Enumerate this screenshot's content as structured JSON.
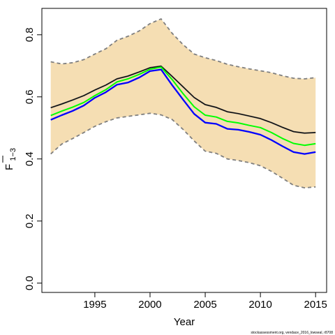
{
  "chart_data": {
    "type": "line",
    "xlabel": "Year",
    "ylabel": "F",
    "ylabel_subscript": "1−3",
    "xlim": [
      1990.2,
      2016
    ],
    "ylim": [
      -0.03,
      0.885
    ],
    "x_ticks": [
      1995,
      2000,
      2005,
      2010,
      2015
    ],
    "y_ticks": [
      0.0,
      0.2,
      0.4,
      0.6,
      0.8
    ],
    "y_tick_labels": [
      "0.0",
      "0.2",
      "0.4",
      "0.6",
      "0.8"
    ],
    "grid": false,
    "legend": "none",
    "years": [
      1991,
      1992,
      1993,
      1994,
      1995,
      1996,
      1997,
      1998,
      1999,
      2000,
      2001,
      2002,
      2003,
      2004,
      2005,
      2006,
      2007,
      2008,
      2009,
      2010,
      2011,
      2012,
      2013,
      2014,
      2015
    ],
    "band": {
      "color": "#f5deb3",
      "border_color": "#7f7f7f",
      "lower": [
        0.416,
        0.448,
        0.466,
        0.485,
        0.505,
        0.52,
        0.532,
        0.537,
        0.542,
        0.547,
        0.542,
        0.527,
        0.495,
        0.458,
        0.425,
        0.418,
        0.4,
        0.395,
        0.388,
        0.378,
        0.36,
        0.338,
        0.315,
        0.307,
        0.31
      ],
      "upper": [
        0.713,
        0.706,
        0.71,
        0.72,
        0.738,
        0.755,
        0.782,
        0.795,
        0.812,
        0.836,
        0.851,
        0.805,
        0.768,
        0.738,
        0.726,
        0.717,
        0.705,
        0.697,
        0.69,
        0.684,
        0.678,
        0.668,
        0.66,
        0.658,
        0.662
      ]
    },
    "series": [
      {
        "color": "#555555",
        "width": 2.0,
        "values": [
          0.565,
          0.577,
          0.59,
          0.604,
          0.622,
          0.638,
          0.658,
          0.667,
          0.68,
          0.694,
          0.699,
          0.666,
          0.632,
          0.598,
          0.575,
          0.566,
          0.552,
          0.546,
          0.538,
          0.53,
          0.517,
          0.502,
          0.488,
          0.483,
          0.485
        ]
      },
      {
        "color": "#00ff00",
        "width": 2.0,
        "values": [
          0.54,
          0.554,
          0.567,
          0.582,
          0.604,
          0.623,
          0.648,
          0.658,
          0.672,
          0.689,
          0.696,
          0.656,
          0.61,
          0.568,
          0.541,
          0.535,
          0.521,
          0.516,
          0.508,
          0.501,
          0.485,
          0.466,
          0.45,
          0.444,
          0.449
        ]
      },
      {
        "color": "#0000ff",
        "width": 2.3,
        "values": [
          0.526,
          0.541,
          0.555,
          0.572,
          0.597,
          0.615,
          0.639,
          0.646,
          0.662,
          0.683,
          0.688,
          0.638,
          0.591,
          0.545,
          0.517,
          0.513,
          0.497,
          0.494,
          0.487,
          0.478,
          0.461,
          0.441,
          0.422,
          0.416,
          0.422
        ]
      }
    ]
  },
  "footer": {
    "note": "stockassessment.org, vendace_2016_lowseal, r8708"
  }
}
